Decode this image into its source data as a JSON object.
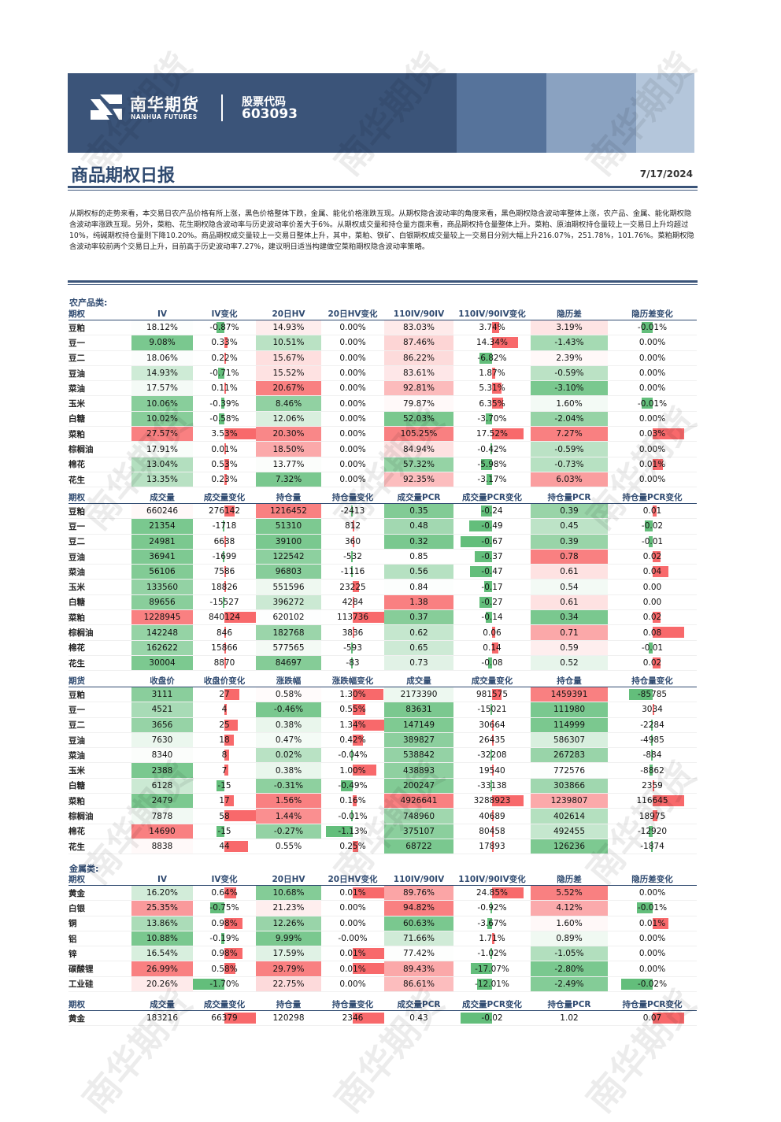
{
  "header": {
    "brand_cn": "南华期货",
    "brand_en": "NANHUA FUTURES",
    "stock_label": "股票代码",
    "stock_code": "603093",
    "watermark": "南华期货"
  },
  "report": {
    "title": "商品期权日报",
    "date": "7/17/2024",
    "summary": "从期权标的走势来看，本交易日农产品价格有所上涨，黑色价格整体下跌，金属、能化价格涨跌互现。从期权隐含波动率的角度来看，黑色期权隐含波动率整体上涨，农产品、金属、能化期权隐含波动率涨跌互现。另外，菜粕、花生期权隐含波动率与历史波动率价差大于6%。从期权成交量和持仓量方面来看，商品期权持仓量整体上升。菜粕、原油期权持仓量较上一交易日上升均超过10%，纯碱期权持仓量则下降10.20%。商品期权成交量较上一交易日整体上升，其中，菜粕、铁矿、白银期权成交量较上一交易日分别大幅上升216.07%，251.78%，101.76%。菜粕期权隐含波动率较前两个交易日上升，目前高于历史波动率7.27%，建议明日适当构建做空菜粕期权隐含波动率策略。"
  },
  "colors": {
    "green": "#63be7b",
    "red": "#f8696b",
    "header_blue": "#3b5479",
    "title_blue": "#2f4a70"
  },
  "sections": [
    {
      "label": "农产品类:",
      "tables": [
        {
          "headers": [
            "期权",
            "IV",
            "IV变化",
            "20日HV",
            "20日HV变化",
            "110IV/90IV",
            "110IV/90IV变化",
            "隐历差",
            "隐历差变化"
          ],
          "rows": [
            [
              "豆粕",
              "18.12%",
              "-0.87%",
              "14.93%",
              "0.00%",
              "83.03%",
              "3.74%",
              "3.19%",
              "-0.01%"
            ],
            [
              "豆一",
              "9.08%",
              "0.33%",
              "10.51%",
              "0.00%",
              "87.46%",
              "14.34%",
              "-1.43%",
              "0.00%"
            ],
            [
              "豆二",
              "18.06%",
              "0.22%",
              "15.67%",
              "0.00%",
              "86.22%",
              "-6.82%",
              "2.39%",
              "0.00%"
            ],
            [
              "豆油",
              "14.93%",
              "-0.71%",
              "15.52%",
              "0.00%",
              "83.61%",
              "1.87%",
              "-0.59%",
              "0.00%"
            ],
            [
              "菜油",
              "17.57%",
              "0.11%",
              "20.67%",
              "0.00%",
              "92.81%",
              "5.31%",
              "-3.10%",
              "0.00%"
            ],
            [
              "玉米",
              "10.06%",
              "-0.39%",
              "8.46%",
              "0.00%",
              "79.87%",
              "6.35%",
              "1.60%",
              "-0.01%"
            ],
            [
              "白糖",
              "10.02%",
              "-0.58%",
              "12.06%",
              "0.00%",
              "52.03%",
              "-3.70%",
              "-2.04%",
              "0.00%"
            ],
            [
              "菜粕",
              "27.57%",
              "3.53%",
              "20.30%",
              "0.00%",
              "105.25%",
              "17.52%",
              "7.27%",
              "0.03%"
            ],
            [
              "棕榈油",
              "17.91%",
              "0.01%",
              "18.50%",
              "0.00%",
              "84.94%",
              "-0.42%",
              "-0.59%",
              "0.00%"
            ],
            [
              "棉花",
              "13.04%",
              "0.53%",
              "13.77%",
              "0.00%",
              "57.32%",
              "-5.98%",
              "-0.73%",
              "0.01%"
            ],
            [
              "花生",
              "13.35%",
              "0.23%",
              "7.32%",
              "0.00%",
              "92.35%",
              "-3.17%",
              "6.03%",
              "0.00%"
            ]
          ]
        },
        {
          "headers": [
            "期权",
            "成交量",
            "成交量变化",
            "持仓量",
            "持仓量变化",
            "成交量PCR",
            "成交量PCR变化",
            "持仓量PCR",
            "持仓量PCR变化"
          ],
          "rows": [
            [
              "豆粕",
              "660246",
              "276142",
              "1216452",
              "-2413",
              "0.35",
              "-0.24",
              "0.39",
              "0.01"
            ],
            [
              "豆一",
              "21354",
              "-1718",
              "51310",
              "812",
              "0.48",
              "-0.49",
              "0.45",
              "-0.02"
            ],
            [
              "豆二",
              "24981",
              "6638",
              "39100",
              "360",
              "0.32",
              "-0.67",
              "0.39",
              "-0.01"
            ],
            [
              "豆油",
              "36941",
              "-1699",
              "122542",
              "-532",
              "0.85",
              "-0.37",
              "0.78",
              "0.02"
            ],
            [
              "菜油",
              "56106",
              "7586",
              "96803",
              "-1116",
              "0.56",
              "-0.47",
              "0.61",
              "0.04"
            ],
            [
              "玉米",
              "133560",
              "18826",
              "551596",
              "23225",
              "0.84",
              "-0.17",
              "0.54",
              "0.00"
            ],
            [
              "白糖",
              "89656",
              "-15527",
              "396272",
              "4284",
              "1.38",
              "-0.27",
              "0.61",
              "0.00"
            ],
            [
              "菜粕",
              "1228945",
              "840124",
              "620102",
              "113736",
              "0.37",
              "-0.14",
              "0.34",
              "0.02"
            ],
            [
              "棕榈油",
              "142248",
              "846",
              "182768",
              "3836",
              "0.62",
              "0.06",
              "0.71",
              "0.08"
            ],
            [
              "棉花",
              "162622",
              "15866",
              "577565",
              "-593",
              "0.65",
              "0.14",
              "0.59",
              "-0.01"
            ],
            [
              "花生",
              "30004",
              "8870",
              "84697",
              "-83",
              "0.73",
              "-0.08",
              "0.52",
              "0.02"
            ]
          ]
        },
        {
          "headers": [
            "期货",
            "收盘价",
            "收盘价变化",
            "涨跌幅",
            "涨跌幅变化",
            "成交量",
            "成交量变化",
            "持仓量",
            "持仓量变化"
          ],
          "rows": [
            [
              "豆粕",
              "3111",
              "27",
              "0.58%",
              "1.30%",
              "2173390",
              "981575",
              "1459391",
              "-85785"
            ],
            [
              "豆一",
              "4521",
              "4",
              "-0.46%",
              "0.55%",
              "83631",
              "-15021",
              "111980",
              "3034"
            ],
            [
              "豆二",
              "3656",
              "25",
              "0.38%",
              "1.34%",
              "147149",
              "30664",
              "114999",
              "-2284"
            ],
            [
              "豆油",
              "7630",
              "18",
              "0.47%",
              "0.42%",
              "389827",
              "26435",
              "586307",
              "-4985"
            ],
            [
              "菜油",
              "8340",
              "8",
              "0.02%",
              "-0.04%",
              "538842",
              "-32208",
              "267283",
              "-884"
            ],
            [
              "玉米",
              "2388",
              "7",
              "0.38%",
              "1.00%",
              "438893",
              "19540",
              "772576",
              "-8862"
            ],
            [
              "白糖",
              "6128",
              "-15",
              "-0.31%",
              "-0.49%",
              "200247",
              "-33138",
              "303866",
              "2359"
            ],
            [
              "菜粕",
              "2479",
              "17",
              "1.56%",
              "0.16%",
              "4926641",
              "3288923",
              "1239807",
              "116645"
            ],
            [
              "棕榈油",
              "7878",
              "58",
              "1.44%",
              "-0.01%",
              "748960",
              "40689",
              "402614",
              "18975"
            ],
            [
              "棉花",
              "14690",
              "-15",
              "-0.27%",
              "-1.13%",
              "375107",
              "80458",
              "492455",
              "-12920"
            ],
            [
              "花生",
              "8838",
              "44",
              "0.55%",
              "0.25%",
              "68722",
              "17893",
              "126236",
              "-1874"
            ]
          ]
        }
      ]
    },
    {
      "label": "金属类:",
      "tables": [
        {
          "headers": [
            "期权",
            "IV",
            "IV变化",
            "20日HV",
            "20日HV变化",
            "110IV/90IV",
            "110IV/90IV变化",
            "隐历差",
            "隐历差变化"
          ],
          "rows": [
            [
              "黄金",
              "16.20%",
              "0.64%",
              "10.68%",
              "0.01%",
              "89.76%",
              "24.85%",
              "5.52%",
              "0.00%"
            ],
            [
              "白银",
              "25.35%",
              "-0.75%",
              "21.23%",
              "0.00%",
              "94.82%",
              "-0.92%",
              "4.12%",
              "-0.01%"
            ],
            [
              "铜",
              "13.86%",
              "0.98%",
              "12.26%",
              "0.00%",
              "60.63%",
              "-3.67%",
              "1.60%",
              "0.01%"
            ],
            [
              "铝",
              "10.88%",
              "-0.19%",
              "9.99%",
              "-0.00%",
              "71.66%",
              "1.71%",
              "0.89%",
              "0.00%"
            ],
            [
              "锌",
              "16.54%",
              "0.98%",
              "17.59%",
              "0.01%",
              "77.42%",
              "-1.02%",
              "-1.05%",
              "0.00%"
            ],
            [
              "碳酸锂",
              "26.99%",
              "0.58%",
              "29.79%",
              "0.01%",
              "89.43%",
              "-17.07%",
              "-2.80%",
              "0.00%"
            ],
            [
              "工业硅",
              "20.26%",
              "-1.70%",
              "22.75%",
              "0.00%",
              "86.61%",
              "-12.01%",
              "-2.49%",
              "-0.02%"
            ]
          ]
        },
        {
          "headers": [
            "期权",
            "成交量",
            "成交量变化",
            "持仓量",
            "持仓量变化",
            "成交量PCR",
            "成交量PCR变化",
            "持仓量PCR",
            "持仓量PCR变化"
          ],
          "rows": [
            [
              "黄金",
              "183216",
              "66379",
              "120298",
              "2346",
              "0.43",
              "-0.02",
              "1.02",
              "0.07"
            ]
          ]
        }
      ]
    }
  ]
}
